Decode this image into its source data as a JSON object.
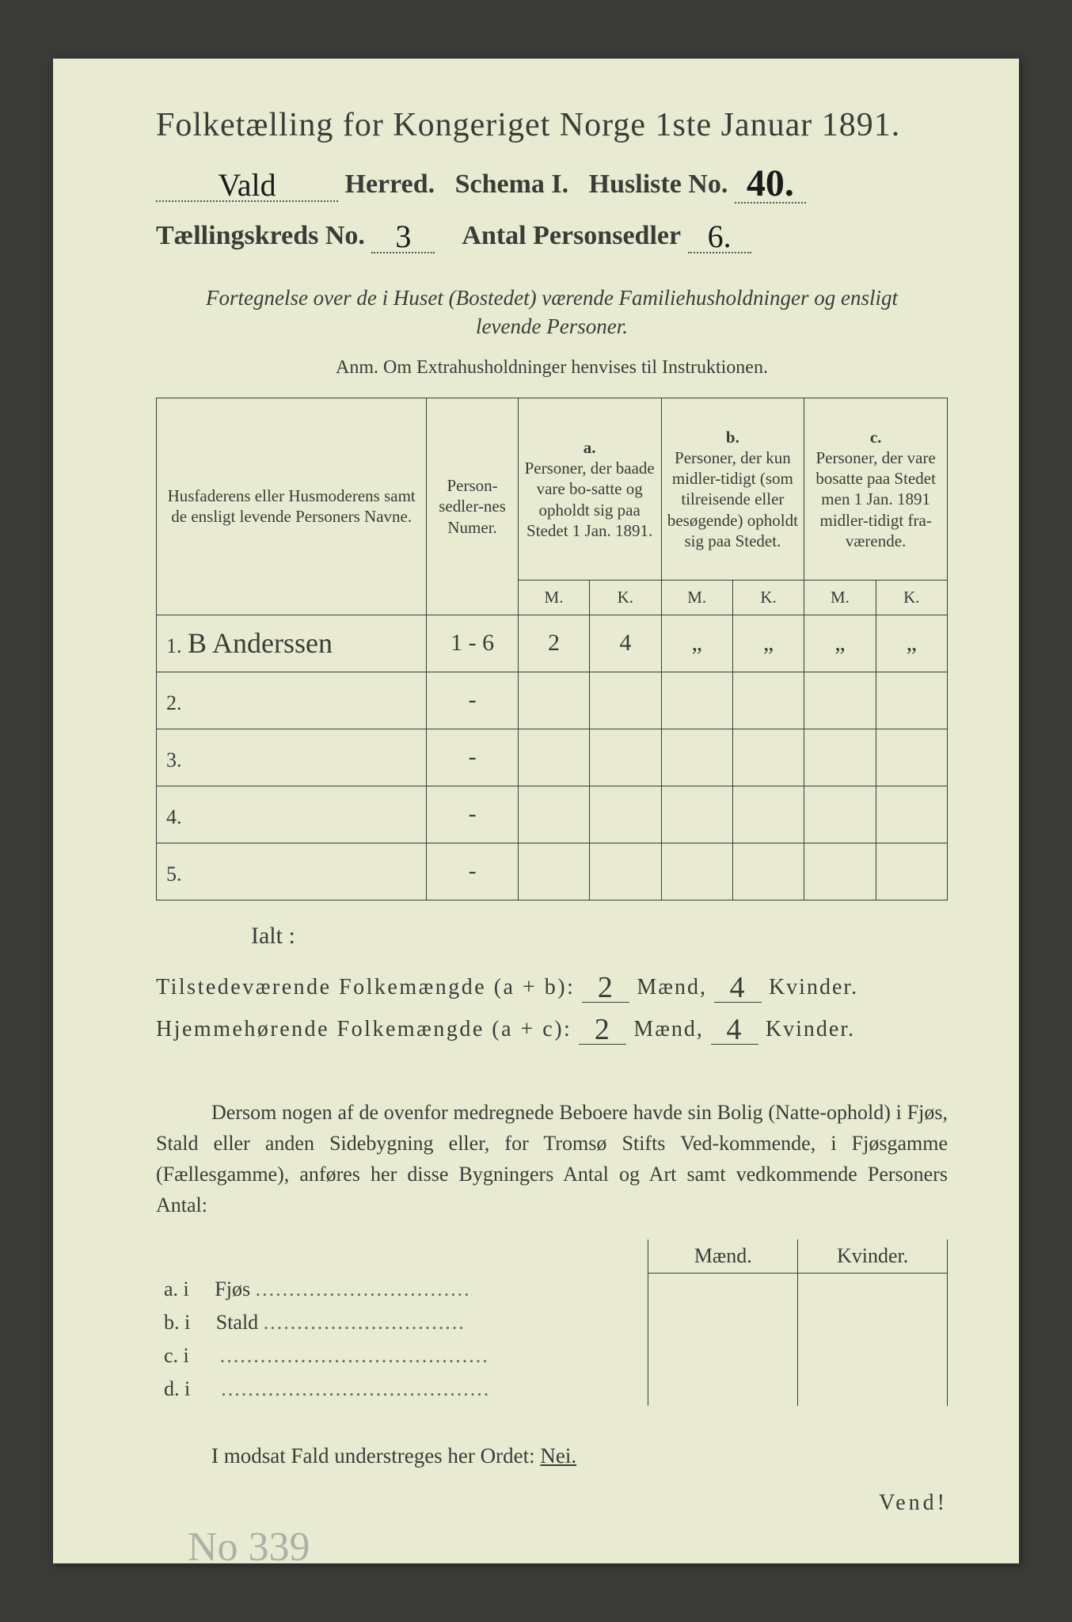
{
  "header": {
    "title": "Folketælling for Kongeriget Norge 1ste Januar 1891.",
    "herred_value": "Vald",
    "herred_label": "Herred.",
    "schema_label": "Schema I.",
    "husliste_label": "Husliste No.",
    "husliste_value": "40.",
    "kreds_label": "Tællingskreds No.",
    "kreds_value": "3",
    "antal_label": "Antal Personsedler",
    "antal_value": "6."
  },
  "subtitle": {
    "line1": "Fortegnelse over de i Huset (Bostedet) værende Familiehusholdninger og ensligt",
    "line2": "levende Personer."
  },
  "anm": "Anm.  Om Extrahusholdninger henvises til Instruktionen.",
  "table": {
    "hdr_name": "Husfaderens eller Husmoderens samt de ensligt levende Personers Navne.",
    "hdr_num": "Person-sedler-nes Numer.",
    "hdr_a_label": "a.",
    "hdr_a": "Personer, der baade vare bo-satte og opholdt sig paa Stedet 1 Jan. 1891.",
    "hdr_b_label": "b.",
    "hdr_b": "Personer, der kun midler-tidigt (som tilreisende eller besøgende) opholdt sig paa Stedet.",
    "hdr_c_label": "c.",
    "hdr_c": "Personer, der vare bosatte paa Stedet men 1 Jan. 1891 midler-tidigt fra-værende.",
    "m": "M.",
    "k": "K.",
    "rows": [
      {
        "n": "1.",
        "name": "B Anderssen",
        "num": "1 - 6",
        "am": "2",
        "ak": "4",
        "bm": "„",
        "bk": "„",
        "cm": "„",
        "ck": "„"
      },
      {
        "n": "2.",
        "name": "",
        "num": "-",
        "am": "",
        "ak": "",
        "bm": "",
        "bk": "",
        "cm": "",
        "ck": ""
      },
      {
        "n": "3.",
        "name": "",
        "num": "-",
        "am": "",
        "ak": "",
        "bm": "",
        "bk": "",
        "cm": "",
        "ck": ""
      },
      {
        "n": "4.",
        "name": "",
        "num": "-",
        "am": "",
        "ak": "",
        "bm": "",
        "bk": "",
        "cm": "",
        "ck": ""
      },
      {
        "n": "5.",
        "name": "",
        "num": "-",
        "am": "",
        "ak": "",
        "bm": "",
        "bk": "",
        "cm": "",
        "ck": ""
      }
    ]
  },
  "ialt": "Ialt :",
  "summary": {
    "line1_label": "Tilstedeværende Folkemængde (a + b):",
    "line1_m": "2",
    "line1_k": "4",
    "line2_label": "Hjemmehørende Folkemængde (a + c):",
    "line2_m": "2",
    "line2_k": "4",
    "maend": "Mænd,",
    "kvinder": "Kvinder."
  },
  "para": "Dersom nogen af de ovenfor medregnede Beboere havde sin Bolig (Natte-ophold) i Fjøs, Stald eller anden Sidebygning eller, for Tromsø Stifts Ved-kommende, i Fjøsgamme (Fællesgamme), anføres her disse Bygningers Antal og Art samt vedkommende Personers Antal:",
  "mk": {
    "maend": "Mænd.",
    "kvinder": "Kvinder."
  },
  "bygning_rows": [
    {
      "label": "a.  i",
      "name": "Fjøs"
    },
    {
      "label": "b.  i",
      "name": "Stald"
    },
    {
      "label": "c.  i",
      "name": ""
    },
    {
      "label": "d.  i",
      "name": ""
    }
  ],
  "nei": {
    "prefix": "I modsat Fald understreges her Ordet:",
    "word": "Nei."
  },
  "footer_no": "No  339",
  "vend": "Vend!",
  "colors": {
    "paper": "#e8ebd2",
    "ink": "#3a3d36",
    "background": "#3a3a38",
    "handwriting": "#1a1a1a",
    "faint": "#888888"
  }
}
